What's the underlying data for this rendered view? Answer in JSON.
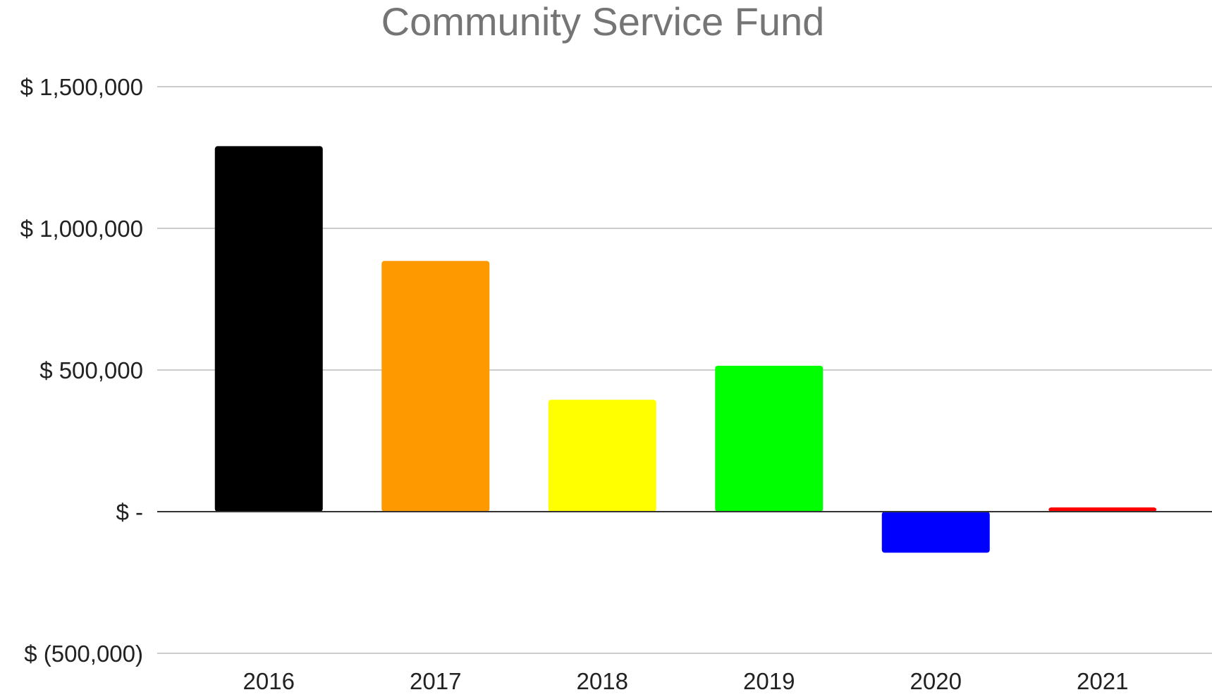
{
  "chart_data": {
    "type": "bar",
    "title": "Community Service Fund",
    "xlabel": "",
    "ylabel": "",
    "categories": [
      "2016",
      "2017",
      "2018",
      "2019",
      "2020",
      "2021"
    ],
    "values": [
      1290000,
      885000,
      395000,
      515000,
      -145000,
      15000
    ],
    "colors": [
      "#000000",
      "#ff9900",
      "#ffff00",
      "#00ff00",
      "#0000ff",
      "#ff0000"
    ],
    "ylim": [
      -500000,
      1500000
    ],
    "y_ticks": [
      {
        "value": 1500000,
        "label": "$ 1,500,000"
      },
      {
        "value": 1000000,
        "label": "$ 1,000,000"
      },
      {
        "value": 500000,
        "label": "$ 500,000"
      },
      {
        "value": 0,
        "label": "$ -"
      },
      {
        "value": -500000,
        "label": "$ (500,000)"
      }
    ],
    "grid": true,
    "legend": "none"
  }
}
